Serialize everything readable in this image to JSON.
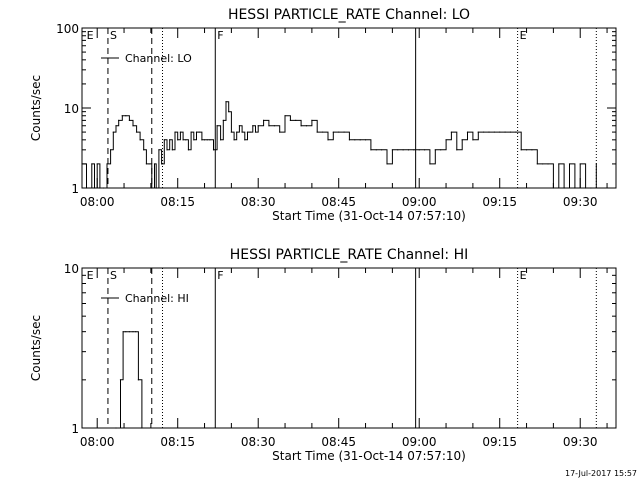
{
  "timestamp": "17-Jul-2017 15:57",
  "chart_data": [
    {
      "type": "line",
      "title": "HESSI PARTICLE_RATE Channel: LO",
      "ylabel": "Counts/sec",
      "xlabel": "Start Time (31-Oct-14 07:57:10)",
      "y_scale": "log",
      "ylim": [
        1,
        100
      ],
      "y_ticks": [
        {
          "value": 1,
          "label": "1"
        },
        {
          "value": 10,
          "label": "10"
        },
        {
          "value": 100,
          "label": "100"
        }
      ],
      "xlim": [
        "07:57:10",
        "09:36:40"
      ],
      "x_ticks": [
        "08:00",
        "08:15",
        "08:30",
        "08:45",
        "09:00",
        "09:15",
        "09:30"
      ],
      "legend": {
        "label": "Channel: LO",
        "placement": "top-left"
      },
      "markers": [
        {
          "time": "07:57:40",
          "label": "E",
          "style": "none"
        },
        {
          "time": "08:02:00",
          "label": "S",
          "style": "dashed"
        },
        {
          "time": "08:10:10",
          "label": "",
          "style": "dashed"
        },
        {
          "time": "08:12:10",
          "label": "",
          "style": "dotted"
        },
        {
          "time": "08:22:00",
          "label": "F",
          "style": "solid"
        },
        {
          "time": "08:59:20",
          "label": "",
          "style": "solid"
        },
        {
          "time": "09:18:20",
          "label": "E",
          "style": "dotted"
        },
        {
          "time": "09:33:00",
          "label": "",
          "style": "dotted"
        }
      ],
      "series": [
        {
          "name": "Channel: LO",
          "x": [
            "07:57:10",
            "07:58:00",
            "07:59:00",
            "07:59:30",
            "08:00:00",
            "08:00:30",
            "08:01:10",
            "08:01:50",
            "08:02:30",
            "08:03:00",
            "08:03:30",
            "08:04:00",
            "08:04:40",
            "08:05:20",
            "08:06:00",
            "08:06:40",
            "08:07:20",
            "08:08:00",
            "08:08:40",
            "08:09:10",
            "08:09:40",
            "08:10:10",
            "08:10:40",
            "08:11:00",
            "08:11:30",
            "08:12:00",
            "08:12:30",
            "08:13:00",
            "08:13:30",
            "08:14:00",
            "08:14:30",
            "08:15:00",
            "08:15:30",
            "08:16:00",
            "08:16:30",
            "08:17:00",
            "08:17:30",
            "08:18:00",
            "08:18:30",
            "08:19:00",
            "08:19:30",
            "08:20:00",
            "08:20:30",
            "08:21:00",
            "08:21:40",
            "08:22:20",
            "08:23:00",
            "08:23:30",
            "08:24:00",
            "08:24:30",
            "08:25:00",
            "08:25:30",
            "08:26:00",
            "08:26:30",
            "08:27:00",
            "08:27:30",
            "08:28:00",
            "08:28:30",
            "08:29:00",
            "08:29:30",
            "08:30:00",
            "08:31:00",
            "08:32:00",
            "08:33:00",
            "08:34:00",
            "08:35:00",
            "08:36:00",
            "08:37:00",
            "08:38:00",
            "08:39:00",
            "08:40:00",
            "08:41:00",
            "08:42:00",
            "08:43:00",
            "08:44:00",
            "08:45:00",
            "08:46:00",
            "08:47:00",
            "08:48:00",
            "08:49:00",
            "08:50:00",
            "08:51:00",
            "08:52:00",
            "08:53:00",
            "08:54:00",
            "08:55:00",
            "08:56:00",
            "08:57:00",
            "08:58:00",
            "08:59:00",
            "09:00:00",
            "09:01:00",
            "09:02:00",
            "09:03:00",
            "09:04:00",
            "09:05:00",
            "09:06:00",
            "09:07:00",
            "09:08:00",
            "09:09:00",
            "09:10:00",
            "09:11:00",
            "09:12:00",
            "09:13:00",
            "09:14:00",
            "09:15:00",
            "09:16:00",
            "09:17:00",
            "09:18:00",
            "09:19:00",
            "09:20:00",
            "09:21:00",
            "09:22:00",
            "09:23:00",
            "09:24:00",
            "09:25:00",
            "09:26:00",
            "09:27:00",
            "09:28:00",
            "09:29:00",
            "09:30:00",
            "09:31:00",
            "09:32:00",
            "09:33:00"
          ],
          "y": [
            2,
            1,
            2,
            1,
            2,
            1,
            1,
            2,
            3,
            5,
            6,
            7,
            8,
            8,
            7,
            6,
            5,
            4,
            3,
            2,
            2,
            1,
            2,
            1,
            3,
            2,
            4,
            3,
            4,
            3,
            5,
            4,
            5,
            4,
            4,
            3,
            5,
            4,
            5,
            5,
            4,
            4,
            4,
            4,
            3,
            6,
            4,
            7,
            12,
            9,
            5,
            4,
            5,
            6,
            5,
            4,
            5,
            5,
            6,
            5,
            6,
            7,
            6,
            6,
            5,
            8,
            7,
            7,
            6,
            6,
            7,
            5,
            5,
            4,
            5,
            5,
            5,
            4,
            4,
            4,
            4,
            3,
            3,
            3,
            2,
            3,
            3,
            3,
            3,
            3,
            3,
            3,
            2,
            3,
            3,
            4,
            5,
            3,
            4,
            5,
            4,
            5,
            5,
            5,
            5,
            5,
            5,
            5,
            5,
            3,
            3,
            3,
            2,
            2,
            2,
            1,
            2,
            1,
            2,
            1,
            2,
            1,
            1,
            2
          ],
          "color": "#000000"
        }
      ]
    },
    {
      "type": "line",
      "title": "HESSI PARTICLE_RATE Channel: HI",
      "ylabel": "Counts/sec",
      "xlabel": "Start Time (31-Oct-14 07:57:10)",
      "y_scale": "log",
      "ylim": [
        1,
        10
      ],
      "y_ticks": [
        {
          "value": 1,
          "label": "1"
        },
        {
          "value": 10,
          "label": "10"
        }
      ],
      "xlim": [
        "07:57:10",
        "09:36:40"
      ],
      "x_ticks": [
        "08:00",
        "08:15",
        "08:30",
        "08:45",
        "09:00",
        "09:15",
        "09:30"
      ],
      "legend": {
        "label": "Channel: HI",
        "placement": "top-left"
      },
      "markers": [
        {
          "time": "07:57:40",
          "label": "E",
          "style": "none"
        },
        {
          "time": "08:02:00",
          "label": "S",
          "style": "dashed"
        },
        {
          "time": "08:10:10",
          "label": "",
          "style": "dashed"
        },
        {
          "time": "08:12:10",
          "label": "",
          "style": "dotted"
        },
        {
          "time": "08:22:00",
          "label": "F",
          "style": "solid"
        },
        {
          "time": "08:59:20",
          "label": "",
          "style": "solid"
        },
        {
          "time": "09:18:20",
          "label": "E",
          "style": "dotted"
        },
        {
          "time": "09:33:00",
          "label": "",
          "style": "dotted"
        }
      ],
      "series": [
        {
          "name": "Channel: HI",
          "x": [
            "08:03:30",
            "08:04:20",
            "08:04:50",
            "08:05:20",
            "08:06:00",
            "08:06:40",
            "08:07:10",
            "08:07:40",
            "08:08:20"
          ],
          "y": [
            1,
            2,
            4,
            4,
            4,
            4,
            4,
            2,
            1
          ],
          "color": "#000000"
        }
      ]
    }
  ]
}
